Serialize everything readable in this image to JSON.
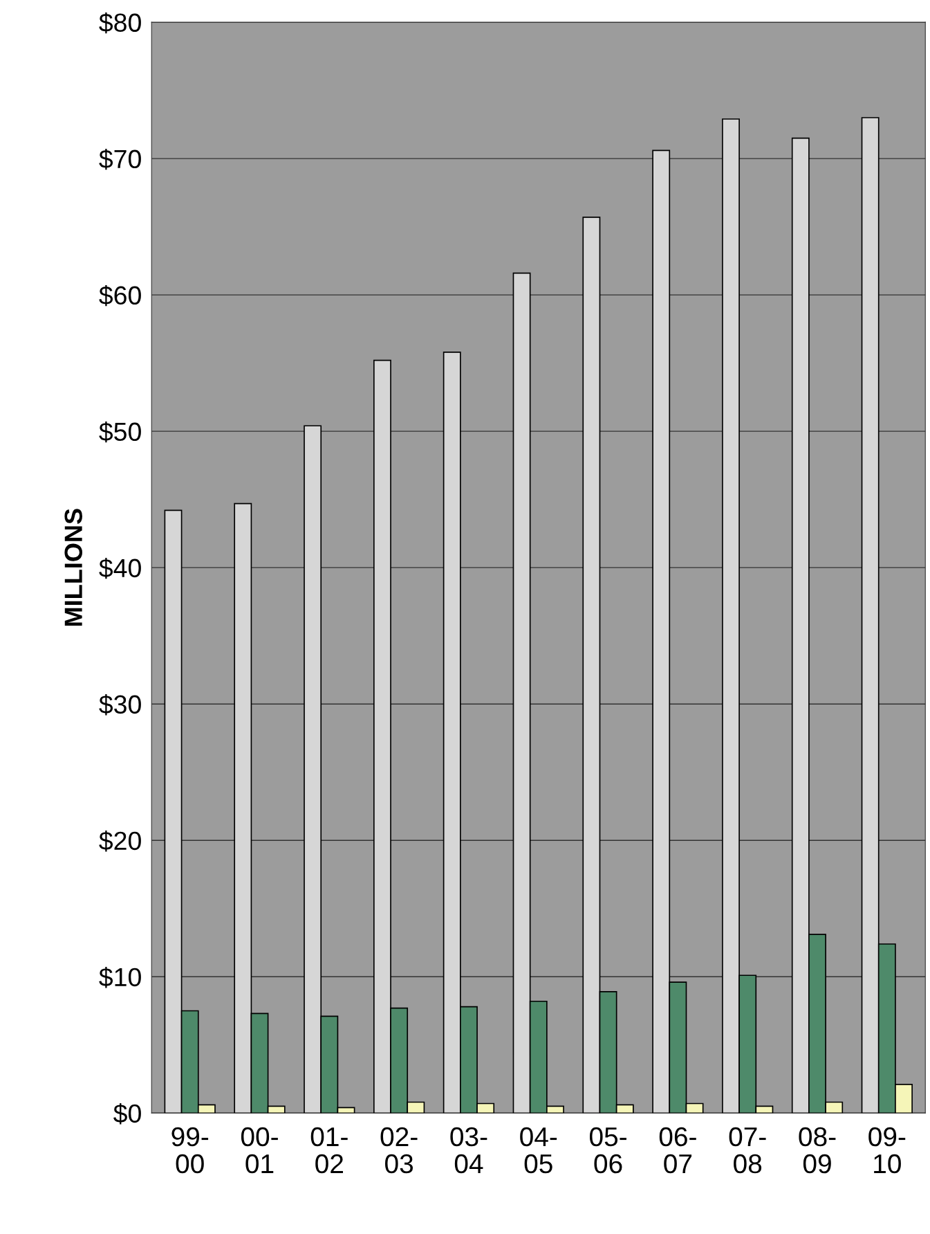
{
  "chart_data": {
    "type": "bar",
    "ylabel": "MILLIONS",
    "categories": [
      "99-\n00",
      "00-\n01",
      "01-\n02",
      "02-\n03",
      "03-\n04",
      "04-\n05",
      "05-\n06",
      "06-\n07",
      "07-\n08",
      "08-\n09",
      "09-\n10"
    ],
    "series": [
      {
        "color": "#d6d6d6",
        "values": [
          44.2,
          44.7,
          50.4,
          55.2,
          55.8,
          61.6,
          65.7,
          70.6,
          72.9,
          71.5,
          73.0
        ]
      },
      {
        "color": "#4e8a6a",
        "values": [
          7.5,
          7.3,
          7.1,
          7.7,
          7.8,
          8.2,
          8.9,
          9.6,
          10.1,
          13.1,
          12.4
        ]
      },
      {
        "color": "#f5f5b8",
        "values": [
          0.6,
          0.5,
          0.4,
          0.8,
          0.7,
          0.5,
          0.6,
          0.7,
          0.5,
          0.8,
          2.1
        ]
      }
    ],
    "ylim": [
      0,
      80
    ],
    "yticks": [
      {
        "value": 0,
        "label": "$0"
      },
      {
        "value": 10,
        "label": "$10"
      },
      {
        "value": 20,
        "label": "$20"
      },
      {
        "value": 30,
        "label": "$30"
      },
      {
        "value": 40,
        "label": "$40"
      },
      {
        "value": 50,
        "label": "$50"
      },
      {
        "value": 60,
        "label": "$60"
      },
      {
        "value": 70,
        "label": "$70"
      },
      {
        "value": 80,
        "label": "$80"
      }
    ],
    "grid": "y",
    "legend": false
  }
}
